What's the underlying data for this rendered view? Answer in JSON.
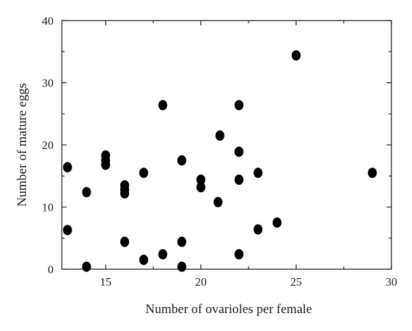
{
  "chart_data": {
    "type": "scatter",
    "title": "",
    "xlabel": "Number of ovarioles per female",
    "ylabel": "Number of mature eggs",
    "xlim": [
      12.7,
      30
    ],
    "ylim": [
      0,
      40
    ],
    "xticks": [
      15,
      20,
      25,
      30
    ],
    "yticks": [
      0,
      10,
      20,
      30,
      40
    ],
    "tick_labels_x": [
      "15",
      "20",
      "25",
      "30"
    ],
    "tick_labels_y": [
      "0",
      "10",
      "20",
      "30",
      "40"
    ],
    "grid": false,
    "legend": "none",
    "marker_color": "#000000",
    "series": [
      {
        "points": [
          {
            "x": 13,
            "y": 16.4
          },
          {
            "x": 13,
            "y": 6.3
          },
          {
            "x": 14,
            "y": 12.4
          },
          {
            "x": 14,
            "y": 0.4
          },
          {
            "x": 15,
            "y": 18.3
          },
          {
            "x": 15,
            "y": 17.5
          },
          {
            "x": 15,
            "y": 16.8
          },
          {
            "x": 16,
            "y": 13.5
          },
          {
            "x": 16,
            "y": 12.8
          },
          {
            "x": 16,
            "y": 12.2
          },
          {
            "x": 16,
            "y": 4.4
          },
          {
            "x": 17,
            "y": 15.5
          },
          {
            "x": 17,
            "y": 1.5
          },
          {
            "x": 18,
            "y": 26.4
          },
          {
            "x": 18,
            "y": 2.4
          },
          {
            "x": 19,
            "y": 17.5
          },
          {
            "x": 19,
            "y": 4.4
          },
          {
            "x": 19,
            "y": 0.4
          },
          {
            "x": 20,
            "y": 14.4
          },
          {
            "x": 20,
            "y": 13.2
          },
          {
            "x": 21,
            "y": 21.5
          },
          {
            "x": 20.9,
            "y": 10.8
          },
          {
            "x": 22,
            "y": 26.4
          },
          {
            "x": 22,
            "y": 18.9
          },
          {
            "x": 22,
            "y": 14.4
          },
          {
            "x": 22,
            "y": 2.4
          },
          {
            "x": 23,
            "y": 15.5
          },
          {
            "x": 23,
            "y": 6.4
          },
          {
            "x": 24,
            "y": 7.5
          },
          {
            "x": 25,
            "y": 34.4
          },
          {
            "x": 29,
            "y": 15.5
          }
        ]
      }
    ]
  }
}
